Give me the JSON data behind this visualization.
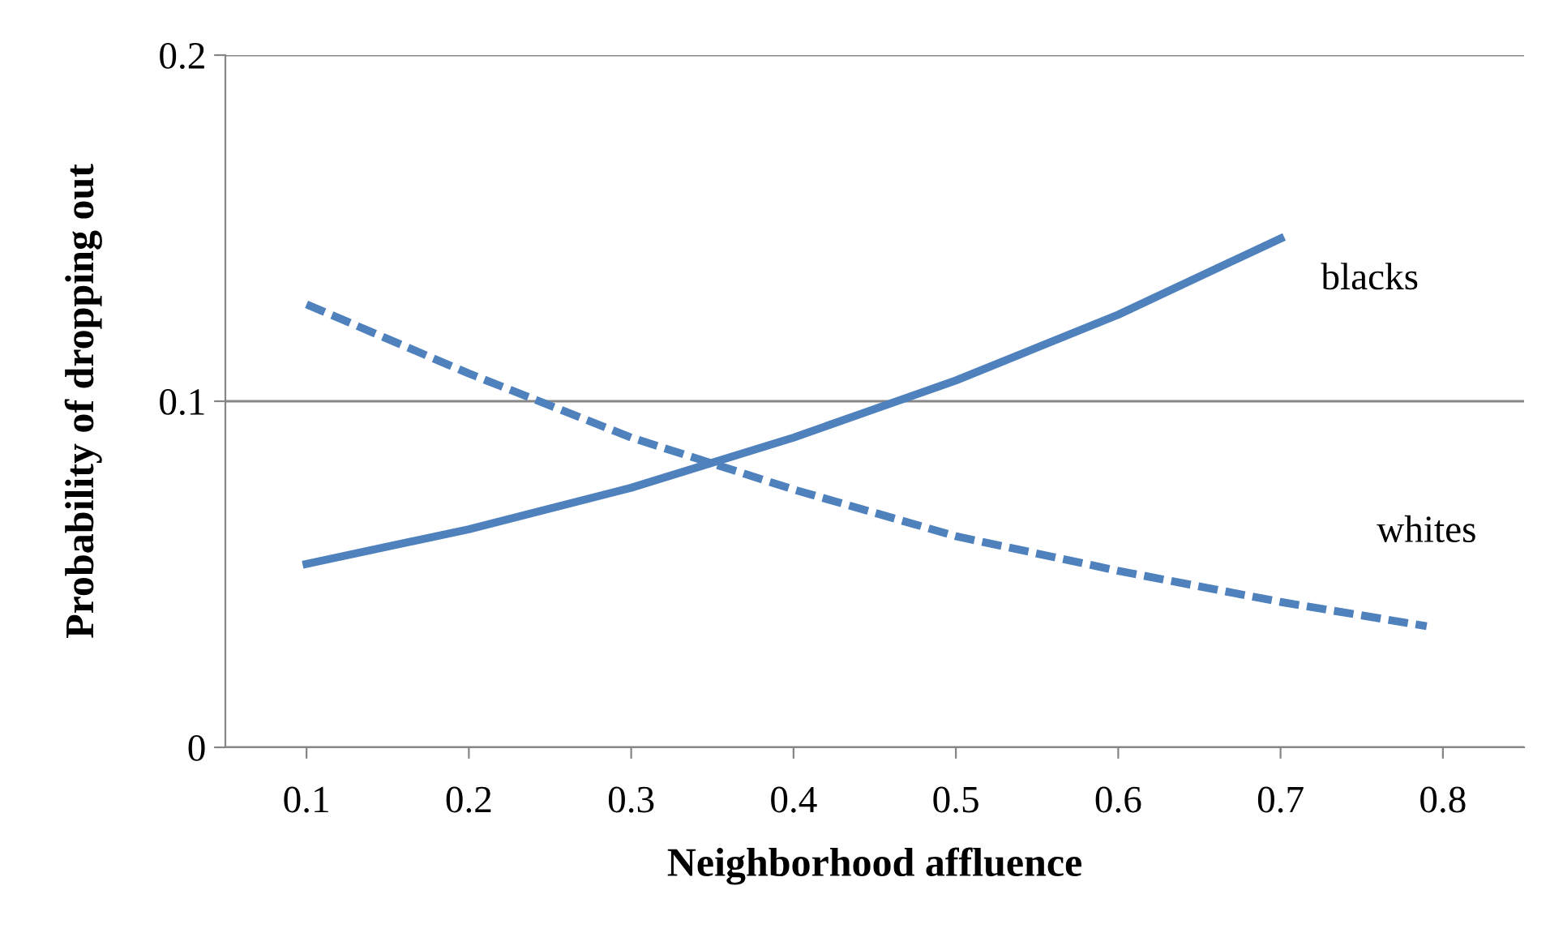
{
  "chart_data": {
    "type": "line",
    "xlabel": "Neighborhood affluence",
    "ylabel": "Probability of dropping out",
    "xlim": [
      0.05,
      0.85
    ],
    "xticks": [
      0.1,
      0.2,
      0.3,
      0.4,
      0.5,
      0.6,
      0.7,
      0.8
    ],
    "ylim": [
      0,
      0.2
    ],
    "yticks": [
      0,
      0.1,
      0.2
    ],
    "grid": "y",
    "legend": false,
    "marker": "none",
    "series": [
      {
        "name": "blacks",
        "color": "#4f81bd",
        "line_style": "solid",
        "x": [
          0.1,
          0.2,
          0.3,
          0.4,
          0.5,
          0.6,
          0.7
        ],
        "values": [
          0.053,
          0.063,
          0.075,
          0.0895,
          0.106,
          0.125,
          0.147
        ]
      },
      {
        "name": "whites",
        "color": "#4f81bd",
        "line_style": "dashed",
        "x": [
          0.1,
          0.2,
          0.3,
          0.4,
          0.5,
          0.6,
          0.7,
          0.79
        ],
        "values": [
          0.128,
          0.108,
          0.0895,
          0.0745,
          0.061,
          0.051,
          0.042,
          0.035
        ]
      }
    ]
  }
}
